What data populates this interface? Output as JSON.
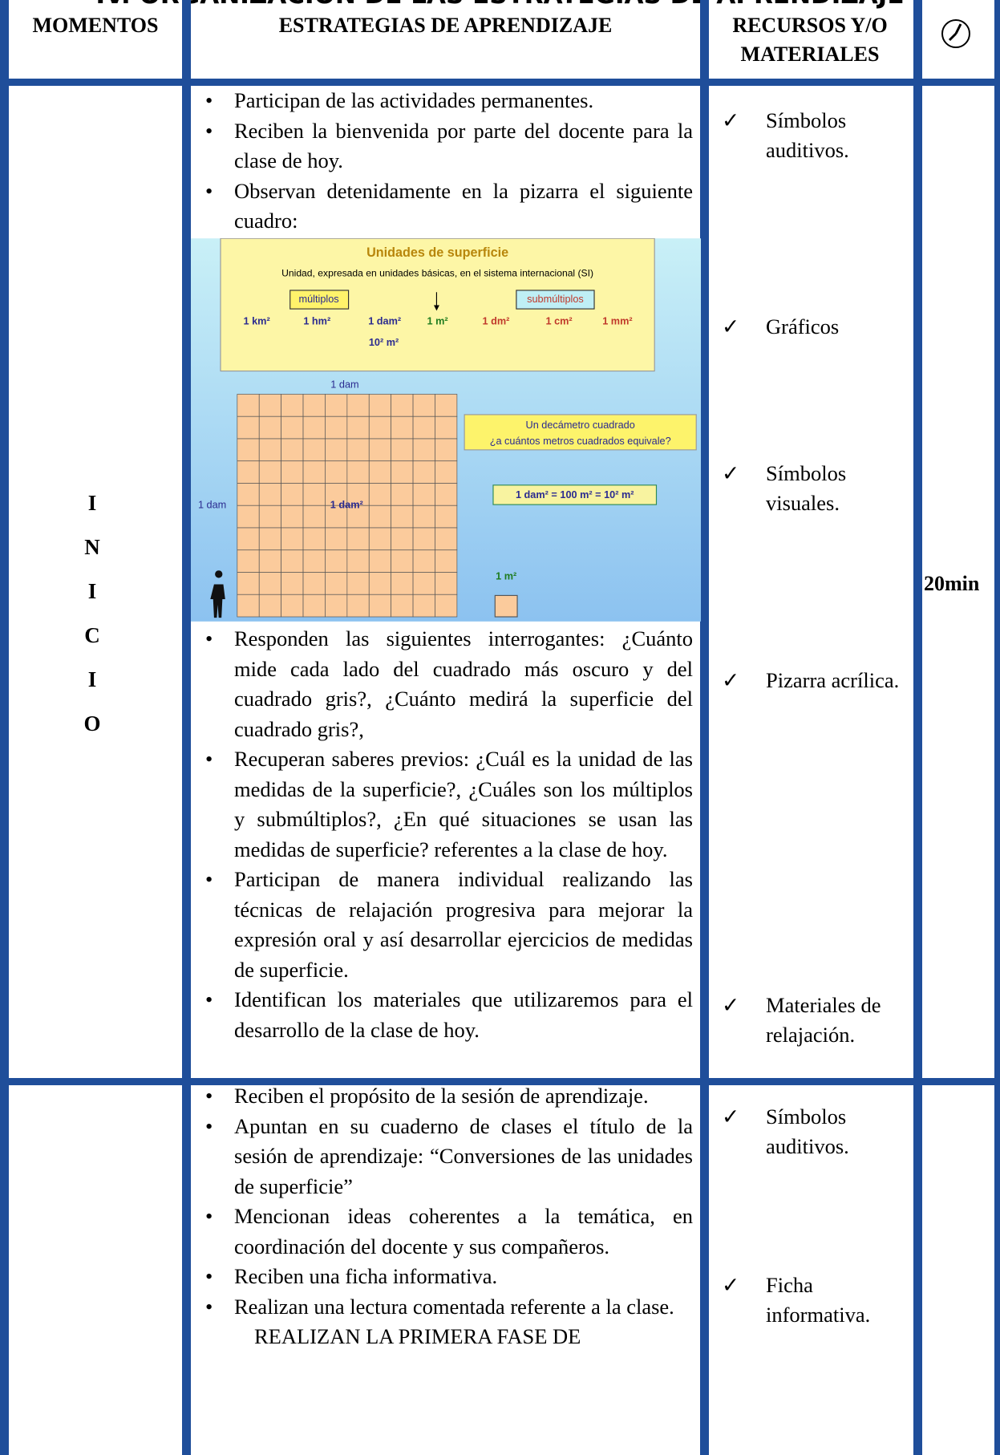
{
  "title": "IV.   ORGANIZACIÓN DE LAS ESTRATEGIAS DE APRENDIZAJE",
  "header": [
    "MOMENTOS",
    "ESTRATEGIAS DE APRENDIZAJE",
    "RECURSOS Y/O MATERIALES"
  ],
  "rows": [
    {
      "moment": [
        "I",
        "N",
        "I",
        "C",
        "I",
        "O"
      ],
      "strategies_before": [
        "Participan de las actividades permanentes.",
        "Reciben la bienvenida por parte del docente para la clase de hoy.",
        "Observan detenidamente en la pizarra el siguiente cuadro:"
      ],
      "figure": {
        "title": "Unidades de superficie",
        "subtitle": "Unidad, expresada en unidades básicas, en el sistema internacional (SI)",
        "multiples": "múltiplos",
        "submultiples": "submúltiplos",
        "units": [
          "1 km²",
          "1 hm²",
          "1 dam²",
          "1 m²",
          "1 dm²",
          "1 cm²",
          "1 mm²"
        ],
        "note": "10² m²",
        "side_top": "1 dam",
        "side_left": "1 dam",
        "center": "1 dam²",
        "question": [
          "Un decámetro cuadrado",
          "¿a cuántos metros cuadrados equivale?"
        ],
        "equation": "1 dam² = 100 m² = 10²  m²",
        "small": "1 m²"
      },
      "strategies_after": [
        "Responden las siguientes interrogantes: ¿Cuánto mide cada lado del cuadrado más oscuro y del cuadrado gris?, ¿Cuánto medirá la superficie del cuadrado gris?,",
        "Recuperan saberes previos: ¿Cuál es la unidad de las medidas de la superficie?, ¿Cuáles son los múltiplos y submúltiplos?, ¿En qué situaciones se usan las medidas de superficie? referentes a la clase de hoy.",
        "Participan de manera individual realizando las técnicas de relajación progresiva para mejorar la expresión oral y así desarrollar ejercicios de medidas de superficie.",
        "Identifican los materiales que utilizaremos para el desarrollo de la clase de hoy."
      ],
      "resources": [
        "Símbolos auditivos.",
        "Gráficos",
        "Símbolos visuales.",
        "Pizarra acrílica.",
        "Materiales de relajación."
      ],
      "time": "20min"
    },
    {
      "strategies_before": [
        "Reciben el propósito de la sesión de aprendizaje.",
        "Apuntan en su cuaderno de clases el título de la sesión de aprendizaje: “Conversiones de las unidades de superficie”",
        "Mencionan ideas coherentes a la temática, en coordinación del docente y sus compañeros.",
        "Reciben una ficha informativa.",
        "Realizan una lectura comentada referente a la clase."
      ],
      "closing": "REALIZAN LA PRIMERA FASE DE",
      "resources": [
        "Símbolos auditivos.",
        "Ficha informativa."
      ]
    }
  ]
}
